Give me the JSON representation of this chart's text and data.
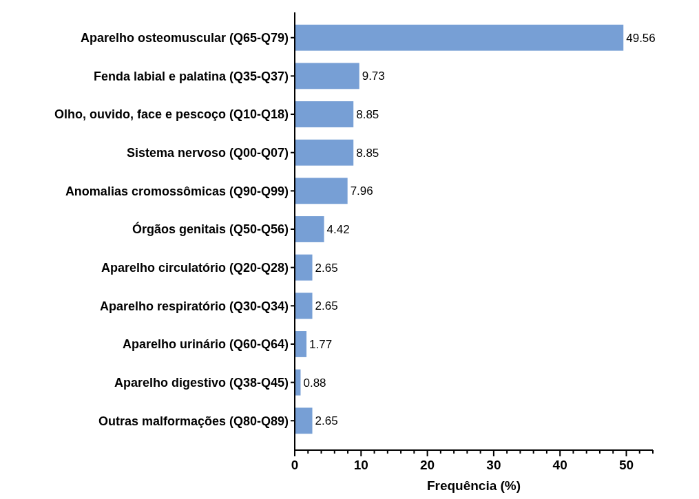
{
  "chart_data": {
    "type": "bar",
    "orientation": "horizontal",
    "xlabel": "Frequência (%)",
    "categories": [
      "Aparelho osteomuscular (Q65-Q79)",
      "Fenda labial e palatina (Q35-Q37)",
      "Olho, ouvido, face e pescoço (Q10-Q18)",
      "Sistema nervoso (Q00-Q07)",
      "Anomalias cromossômicas (Q90-Q99)",
      "Órgãos genitais (Q50-Q56)",
      "Aparelho circulatório (Q20-Q28)",
      "Aparelho respiratório (Q30-Q34)",
      "Aparelho urinário (Q60-Q64)",
      "Aparelho digestivo (Q38-Q45)",
      "Outras malformações (Q80-Q89)"
    ],
    "values": [
      49.56,
      9.73,
      8.85,
      8.85,
      7.96,
      4.42,
      2.65,
      2.65,
      1.77,
      0.88,
      2.65
    ],
    "color": "#779fd5",
    "data_labels": true,
    "xlim": [
      0,
      54
    ],
    "xticks": [
      0,
      {
        "value": 2,
        "label": null
      },
      {
        "value": 4,
        "label": null
      },
      {
        "value": 6,
        "label": null
      },
      {
        "value": 8,
        "label": null
      },
      10,
      {
        "value": 12,
        "label": null
      },
      {
        "value": 14,
        "label": null
      },
      {
        "value": 16,
        "label": null
      },
      {
        "value": 18,
        "label": null
      },
      20,
      {
        "value": 22,
        "label": null
      },
      {
        "value": 24,
        "label": null
      },
      {
        "value": 26,
        "label": null
      },
      {
        "value": 28,
        "label": null
      },
      30,
      {
        "value": 32,
        "label": null
      },
      {
        "value": 34,
        "label": null
      },
      {
        "value": 36,
        "label": null
      },
      {
        "value": 38,
        "label": null
      },
      40,
      {
        "value": 42,
        "label": null
      },
      {
        "value": 44,
        "label": null
      },
      {
        "value": 46,
        "label": null
      },
      {
        "value": 48,
        "label": null
      },
      50,
      {
        "value": 52,
        "label": null
      },
      {
        "value": 54,
        "label": null
      }
    ],
    "grid": false
  }
}
